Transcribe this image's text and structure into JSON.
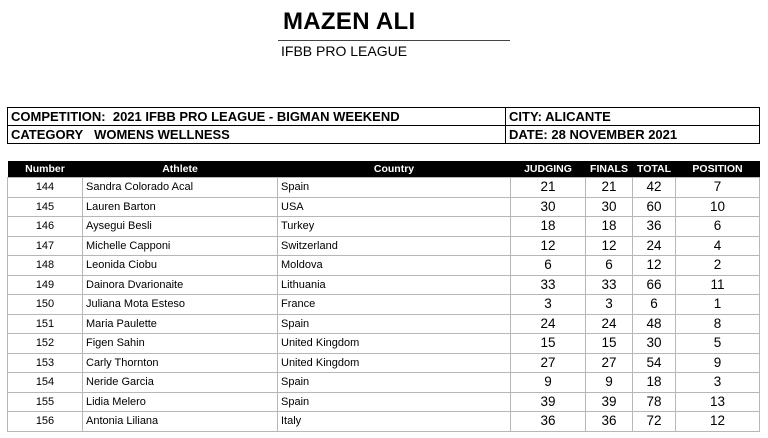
{
  "judge": {
    "name": "MAZEN ALI",
    "organization": "IFBB PRO LEAGUE"
  },
  "info": {
    "competition_label": "COMPETITION:",
    "competition": "2021 IFBB PRO LEAGUE - BIGMAN WEEKEND",
    "city_label": "CITY:",
    "city": "ALICANTE",
    "category_label": "CATEGORY",
    "category": "WOMENS WELLNESS",
    "date_label": "DATE:",
    "date": "28 NOVEMBER 2021"
  },
  "columns": {
    "number": "Number",
    "athlete": "Athlete",
    "country": "Country",
    "judging": "JUDGING",
    "finals": "FINALS",
    "total": "TOTAL",
    "position": "POSITION"
  },
  "rows": [
    {
      "number": "144",
      "athlete": "Sandra Colorado Acal",
      "country": "Spain",
      "judging": "21",
      "finals": "21",
      "total": "42",
      "position": "7"
    },
    {
      "number": "145",
      "athlete": "Lauren Barton",
      "country": "USA",
      "judging": "30",
      "finals": "30",
      "total": "60",
      "position": "10"
    },
    {
      "number": "146",
      "athlete": "Aysegui Besli",
      "country": "Turkey",
      "judging": "18",
      "finals": "18",
      "total": "36",
      "position": "6"
    },
    {
      "number": "147",
      "athlete": "Michelle Capponi",
      "country": "Switzerland",
      "judging": "12",
      "finals": "12",
      "total": "24",
      "position": "4"
    },
    {
      "number": "148",
      "athlete": "Leonida Ciobu",
      "country": "Moldova",
      "judging": "6",
      "finals": "6",
      "total": "12",
      "position": "2"
    },
    {
      "number": "149",
      "athlete": "Dainora Dvarionaite",
      "country": "Lithuania",
      "judging": "33",
      "finals": "33",
      "total": "66",
      "position": "11"
    },
    {
      "number": "150",
      "athlete": "Juliana Mota Esteso",
      "country": "France",
      "judging": "3",
      "finals": "3",
      "total": "6",
      "position": "1"
    },
    {
      "number": "151",
      "athlete": "Maria Paulette",
      "country": "Spain",
      "judging": "24",
      "finals": "24",
      "total": "48",
      "position": "8"
    },
    {
      "number": "152",
      "athlete": "Figen Sahin",
      "country": "United Kingdom",
      "judging": "15",
      "finals": "15",
      "total": "30",
      "position": "5"
    },
    {
      "number": "153",
      "athlete": "Carly Thornton",
      "country": "United Kingdom",
      "judging": "27",
      "finals": "27",
      "total": "54",
      "position": "9"
    },
    {
      "number": "154",
      "athlete": "Neride Garcia",
      "country": "Spain",
      "judging": "9",
      "finals": "9",
      "total": "18",
      "position": "3"
    },
    {
      "number": "155",
      "athlete": "Lidia Melero",
      "country": "Spain",
      "judging": "39",
      "finals": "39",
      "total": "78",
      "position": "13"
    },
    {
      "number": "156",
      "athlete": "Antonia Liliana",
      "country": "Italy",
      "judging": "36",
      "finals": "36",
      "total": "72",
      "position": "12"
    }
  ]
}
